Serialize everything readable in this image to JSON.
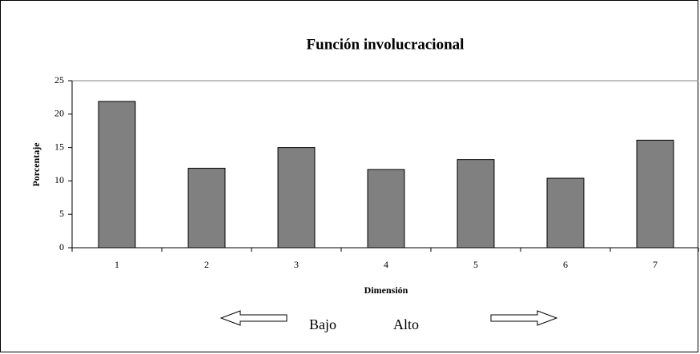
{
  "chart_data": {
    "type": "bar",
    "title": "Función involucracional",
    "categories": [
      "1",
      "2",
      "3",
      "4",
      "5",
      "6",
      "7"
    ],
    "values": [
      21.9,
      11.9,
      15,
      11.7,
      13.2,
      10.4,
      16.1
    ],
    "color": "#808080",
    "ylim": [
      0,
      25
    ],
    "yticks": [
      0,
      5,
      10,
      15,
      20,
      25
    ],
    "grid": false,
    "x_label": "Dimensión",
    "y_label": "Porcentaje",
    "annotations": [
      "Bajo",
      "Alto"
    ]
  }
}
